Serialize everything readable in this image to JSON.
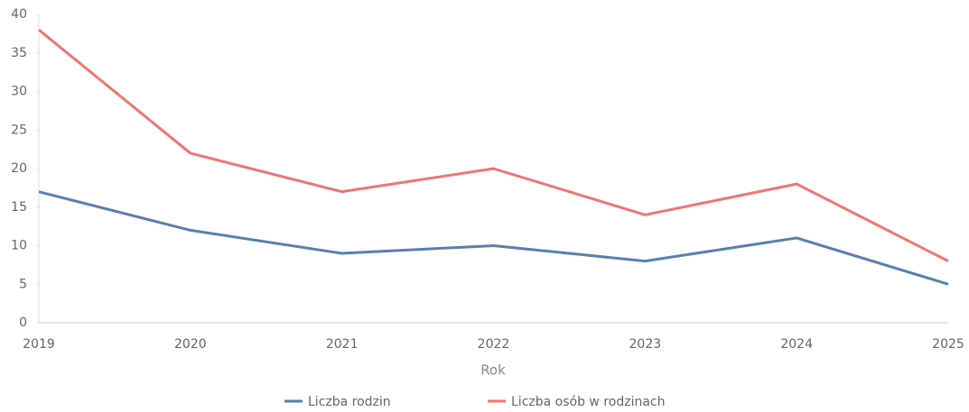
{
  "chart_data": {
    "type": "line",
    "categories": [
      "2019",
      "2020",
      "2021",
      "2022",
      "2023",
      "2024",
      "2025"
    ],
    "x_label": "Rok",
    "series": [
      {
        "name": "Liczba rodzin",
        "color": "#5a7fb0",
        "values": [
          17,
          12,
          9,
          10,
          8,
          11,
          5
        ]
      },
      {
        "name": "Liczba osób w rodzinach",
        "color": "#f07575",
        "values": [
          38,
          22,
          17,
          20,
          14,
          18,
          8
        ]
      }
    ],
    "ylim": [
      0,
      40
    ],
    "yticks": [
      0,
      5,
      10,
      15,
      20,
      25,
      30,
      35,
      40
    ],
    "grid": false
  }
}
